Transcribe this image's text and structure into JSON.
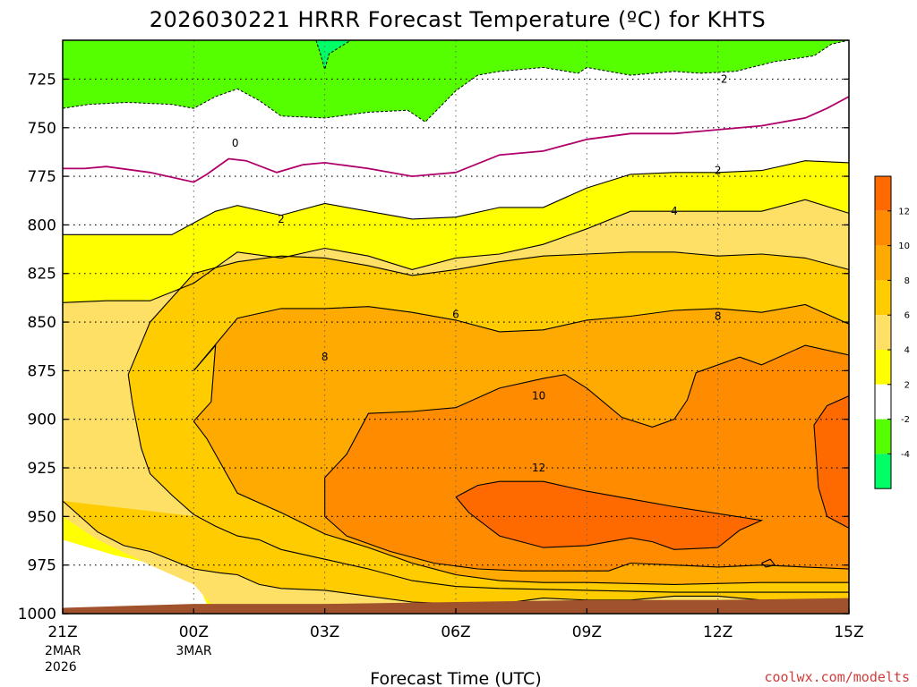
{
  "colors": {
    "green_light": "#00ff66",
    "green": "#55ff00",
    "white": "#ffffff",
    "yellow": "#ffff00",
    "gold_light": "#ffe066",
    "gold": "#ffcc00",
    "orange_light": "#ffaa00",
    "orange": "#ff8c00",
    "orange_dark": "#ff6a00",
    "ground": "#a0522d",
    "zero_line": "#b0006a",
    "credit": "#d23c3c"
  },
  "chart_data": {
    "type": "contour",
    "title": "2026030221 HRRR Forecast Temperature (ºC) for KHTS",
    "xlabel": "Forecast Time (UTC)",
    "ylabel": "",
    "credit": "coolwx.com/modelts",
    "x_ticks": [
      "21Z",
      "00Z",
      "03Z",
      "06Z",
      "09Z",
      "12Z",
      "15Z"
    ],
    "x_hours": [
      0,
      3,
      6,
      9,
      12,
      15,
      18
    ],
    "x_date_notes": [
      {
        "hour": 0,
        "lines": [
          "2MAR",
          "2026"
        ]
      },
      {
        "hour": 3,
        "lines": [
          "3MAR"
        ]
      }
    ],
    "y_ticks": [
      725,
      750,
      775,
      800,
      825,
      850,
      875,
      900,
      925,
      950,
      975,
      1000
    ],
    "ylim": [
      1000,
      705
    ],
    "xlim": [
      0,
      18
    ],
    "colorbar_labels": [
      "12",
      "10",
      "8",
      "6",
      "4",
      "2",
      "-2",
      "-4"
    ],
    "contour_labels": [
      {
        "text": "-2",
        "hour": 15.1,
        "pres": 725
      },
      {
        "text": "0",
        "hour": 3.95,
        "pres": 758
      },
      {
        "text": "2",
        "hour": 5.0,
        "pres": 797
      },
      {
        "text": "2",
        "hour": 15.0,
        "pres": 772
      },
      {
        "text": "4",
        "hour": 14.0,
        "pres": 793
      },
      {
        "text": "6",
        "hour": 9.0,
        "pres": 846
      },
      {
        "text": "8",
        "hour": 6.0,
        "pres": 868
      },
      {
        "text": "8",
        "hour": 15.0,
        "pres": 847
      },
      {
        "text": "10",
        "hour": 10.9,
        "pres": 888
      },
      {
        "text": "12",
        "hour": 10.9,
        "pres": 925
      }
    ],
    "series": [
      {
        "level": -4,
        "points": [
          [
            5.8,
            705
          ],
          [
            5.9,
            712
          ],
          [
            6.0,
            720
          ],
          [
            6.1,
            712
          ],
          [
            6.6,
            705
          ]
        ]
      },
      {
        "level": -2,
        "points": [
          [
            0,
            740
          ],
          [
            0.6,
            738
          ],
          [
            1.5,
            737
          ],
          [
            2.5,
            738
          ],
          [
            3.0,
            740
          ],
          [
            3.5,
            734
          ],
          [
            4.0,
            730
          ],
          [
            4.5,
            736
          ],
          [
            5.0,
            744
          ],
          [
            6.0,
            745
          ],
          [
            7.0,
            742
          ],
          [
            7.9,
            741
          ],
          [
            8.3,
            747
          ],
          [
            9.0,
            731
          ],
          [
            9.5,
            723
          ],
          [
            10.0,
            721
          ],
          [
            11.0,
            719
          ],
          [
            11.8,
            722
          ],
          [
            12.0,
            719
          ],
          [
            12.5,
            721
          ],
          [
            13.0,
            723
          ],
          [
            14.0,
            721
          ],
          [
            14.6,
            722
          ],
          [
            15.4,
            721
          ],
          [
            16.3,
            716
          ],
          [
            17.2,
            713
          ],
          [
            17.6,
            707
          ],
          [
            18.0,
            705
          ]
        ]
      },
      {
        "level": 0,
        "points": [
          [
            0,
            771
          ],
          [
            0.5,
            771
          ],
          [
            1.0,
            770
          ],
          [
            2.0,
            773
          ],
          [
            3.0,
            778
          ],
          [
            3.3,
            774
          ],
          [
            3.8,
            766
          ],
          [
            4.2,
            767
          ],
          [
            4.9,
            773
          ],
          [
            5.5,
            769
          ],
          [
            6.0,
            768
          ],
          [
            7.0,
            771
          ],
          [
            8.0,
            775
          ],
          [
            8.5,
            774
          ],
          [
            9.0,
            773
          ],
          [
            10.0,
            764
          ],
          [
            11.0,
            762
          ],
          [
            12.0,
            756
          ],
          [
            13.0,
            753
          ],
          [
            14.0,
            753
          ],
          [
            15.0,
            751
          ],
          [
            16.0,
            749
          ],
          [
            17.0,
            745
          ],
          [
            17.5,
            740
          ],
          [
            18.0,
            734
          ]
        ]
      },
      {
        "level": 2,
        "points": [
          [
            0,
            805
          ],
          [
            1.5,
            805
          ],
          [
            2.5,
            805
          ],
          [
            3.5,
            793
          ],
          [
            4.0,
            790
          ],
          [
            5.0,
            795
          ],
          [
            6.0,
            789
          ],
          [
            7.0,
            793
          ],
          [
            8.0,
            797
          ],
          [
            9.0,
            796
          ],
          [
            10.0,
            791
          ],
          [
            11.0,
            791
          ],
          [
            12.0,
            781
          ],
          [
            13.0,
            774
          ],
          [
            14.0,
            773
          ],
          [
            15.0,
            773
          ],
          [
            16.0,
            772
          ],
          [
            17.0,
            767
          ],
          [
            18.0,
            768
          ]
        ]
      },
      {
        "level": 4,
        "points": [
          [
            0,
            840
          ],
          [
            1.0,
            839
          ],
          [
            2.0,
            839
          ],
          [
            3.0,
            830
          ],
          [
            4.0,
            814
          ],
          [
            5.0,
            817
          ],
          [
            6.0,
            812
          ],
          [
            7.0,
            816
          ],
          [
            8.0,
            823
          ],
          [
            9.0,
            817
          ],
          [
            10.0,
            815
          ],
          [
            11.0,
            810
          ],
          [
            12.0,
            802
          ],
          [
            13.0,
            793
          ],
          [
            14.0,
            793
          ],
          [
            15.0,
            793
          ],
          [
            16.0,
            793
          ],
          [
            17.0,
            787
          ],
          [
            18.0,
            794
          ]
        ]
      },
      {
        "level": 6,
        "points": [
          [
            0,
            942
          ],
          [
            0.8,
            958
          ],
          [
            1.4,
            965
          ],
          [
            2.0,
            968
          ],
          [
            3.0,
            977
          ],
          [
            3.6,
            979
          ],
          [
            4.0,
            980
          ],
          [
            4.5,
            985
          ],
          [
            5.0,
            987
          ],
          [
            6.0,
            988
          ],
          [
            7.0,
            991
          ],
          [
            8.0,
            994
          ],
          [
            9.0,
            995
          ],
          [
            10.0,
            995
          ],
          [
            11.0,
            992
          ],
          [
            12.0,
            993
          ],
          [
            13.0,
            993
          ],
          [
            14.0,
            991
          ],
          [
            15.0,
            991
          ],
          [
            16.0,
            993
          ],
          [
            18.0,
            993
          ],
          [
            18,
            823
          ],
          [
            17.0,
            817
          ],
          [
            16.0,
            815
          ],
          [
            15.0,
            816
          ],
          [
            14.0,
            814
          ],
          [
            13.0,
            814
          ],
          [
            12.0,
            815
          ],
          [
            11.0,
            816
          ],
          [
            10.0,
            819
          ],
          [
            9.0,
            823
          ],
          [
            8.0,
            826
          ],
          [
            7.0,
            821
          ],
          [
            6.0,
            817
          ],
          [
            5.0,
            816
          ],
          [
            4.0,
            819
          ],
          [
            3.0,
            825
          ],
          [
            2.0,
            850
          ],
          [
            1.5,
            877
          ],
          [
            1.6,
            892
          ],
          [
            1.8,
            915
          ],
          [
            2.0,
            928
          ],
          [
            2.5,
            939
          ],
          [
            3.0,
            949
          ],
          [
            3.5,
            955
          ],
          [
            4.0,
            960
          ],
          [
            4.5,
            962
          ],
          [
            5.0,
            967
          ],
          [
            6.0,
            972
          ],
          [
            7.0,
            977
          ],
          [
            8.0,
            983
          ],
          [
            9.0,
            986
          ],
          [
            10.0,
            987
          ],
          [
            12.0,
            988
          ],
          [
            14.0,
            989
          ],
          [
            16.0,
            989
          ],
          [
            18.0,
            989
          ]
        ]
      },
      {
        "level": 8,
        "points": [
          [
            3.0,
            901
          ],
          [
            3.3,
            910
          ],
          [
            4.0,
            938
          ],
          [
            5.0,
            948
          ],
          [
            6.0,
            959
          ],
          [
            7.0,
            966
          ],
          [
            8.0,
            974
          ],
          [
            9.0,
            980
          ],
          [
            10.0,
            983
          ],
          [
            11.0,
            984
          ],
          [
            12.0,
            984
          ],
          [
            14.0,
            985
          ],
          [
            16.0,
            984
          ],
          [
            18.0,
            984
          ],
          [
            18,
            851
          ],
          [
            17.0,
            841
          ],
          [
            16.0,
            845
          ],
          [
            15.0,
            843
          ],
          [
            14.0,
            844
          ],
          [
            13.0,
            847
          ],
          [
            12.0,
            849
          ],
          [
            11.0,
            854
          ],
          [
            10.0,
            855
          ],
          [
            9.0,
            849
          ],
          [
            8.0,
            845
          ],
          [
            7.0,
            842
          ],
          [
            6.0,
            843
          ],
          [
            5.0,
            843
          ],
          [
            4.0,
            848
          ],
          [
            3.0,
            875
          ],
          [
            3.5,
            862
          ],
          [
            3.4,
            891
          ],
          [
            3.0,
            901
          ]
        ]
      },
      {
        "level": 10,
        "points": [
          [
            6.0,
            930
          ],
          [
            6.0,
            950
          ],
          [
            6.5,
            960
          ],
          [
            7.5,
            968
          ],
          [
            8.5,
            974
          ],
          [
            9.5,
            977
          ],
          [
            10.5,
            978
          ],
          [
            11.5,
            978
          ],
          [
            12.5,
            978
          ],
          [
            13.0,
            974
          ],
          [
            14.0,
            975
          ],
          [
            15.0,
            976
          ],
          [
            16.0,
            975
          ],
          [
            17.0,
            976
          ],
          [
            18.0,
            977
          ],
          [
            18,
            867
          ],
          [
            17.0,
            862
          ],
          [
            16.0,
            872
          ],
          [
            15.5,
            868
          ],
          [
            14.5,
            876
          ],
          [
            14.3,
            890
          ],
          [
            14.0,
            900
          ],
          [
            13.5,
            904
          ],
          [
            12.8,
            899
          ],
          [
            12.0,
            884
          ],
          [
            11.5,
            877
          ],
          [
            11.0,
            879
          ],
          [
            10.0,
            884
          ],
          [
            9.0,
            894
          ],
          [
            8.0,
            896
          ],
          [
            7.0,
            897
          ],
          [
            6.5,
            918
          ],
          [
            6.0,
            930
          ]
        ]
      },
      {
        "level": 12,
        "points": [
          [
            9.0,
            940
          ],
          [
            9.3,
            948
          ],
          [
            10.0,
            960
          ],
          [
            11.0,
            966
          ],
          [
            12.0,
            965
          ],
          [
            13.0,
            961
          ],
          [
            13.5,
            963
          ],
          [
            14.0,
            967
          ],
          [
            15.0,
            966
          ],
          [
            15.5,
            957
          ],
          [
            16.0,
            952
          ],
          [
            14.0,
            945
          ],
          [
            13.0,
            941
          ],
          [
            12.0,
            937
          ],
          [
            11.0,
            932
          ],
          [
            10.0,
            932
          ],
          [
            9.5,
            934
          ],
          [
            9.0,
            940
          ]
        ]
      },
      {
        "level": 14,
        "points": [
          [
            18,
            888
          ],
          [
            17.5,
            893
          ],
          [
            17.2,
            903
          ],
          [
            17.3,
            935
          ],
          [
            17.5,
            950
          ],
          [
            18,
            956
          ]
        ]
      }
    ],
    "small_contours": [
      {
        "level": 12,
        "points": [
          [
            16.0,
            974
          ],
          [
            16.2,
            972
          ],
          [
            16.3,
            975
          ],
          [
            16.1,
            976
          ],
          [
            16.0,
            974
          ]
        ]
      }
    ]
  }
}
